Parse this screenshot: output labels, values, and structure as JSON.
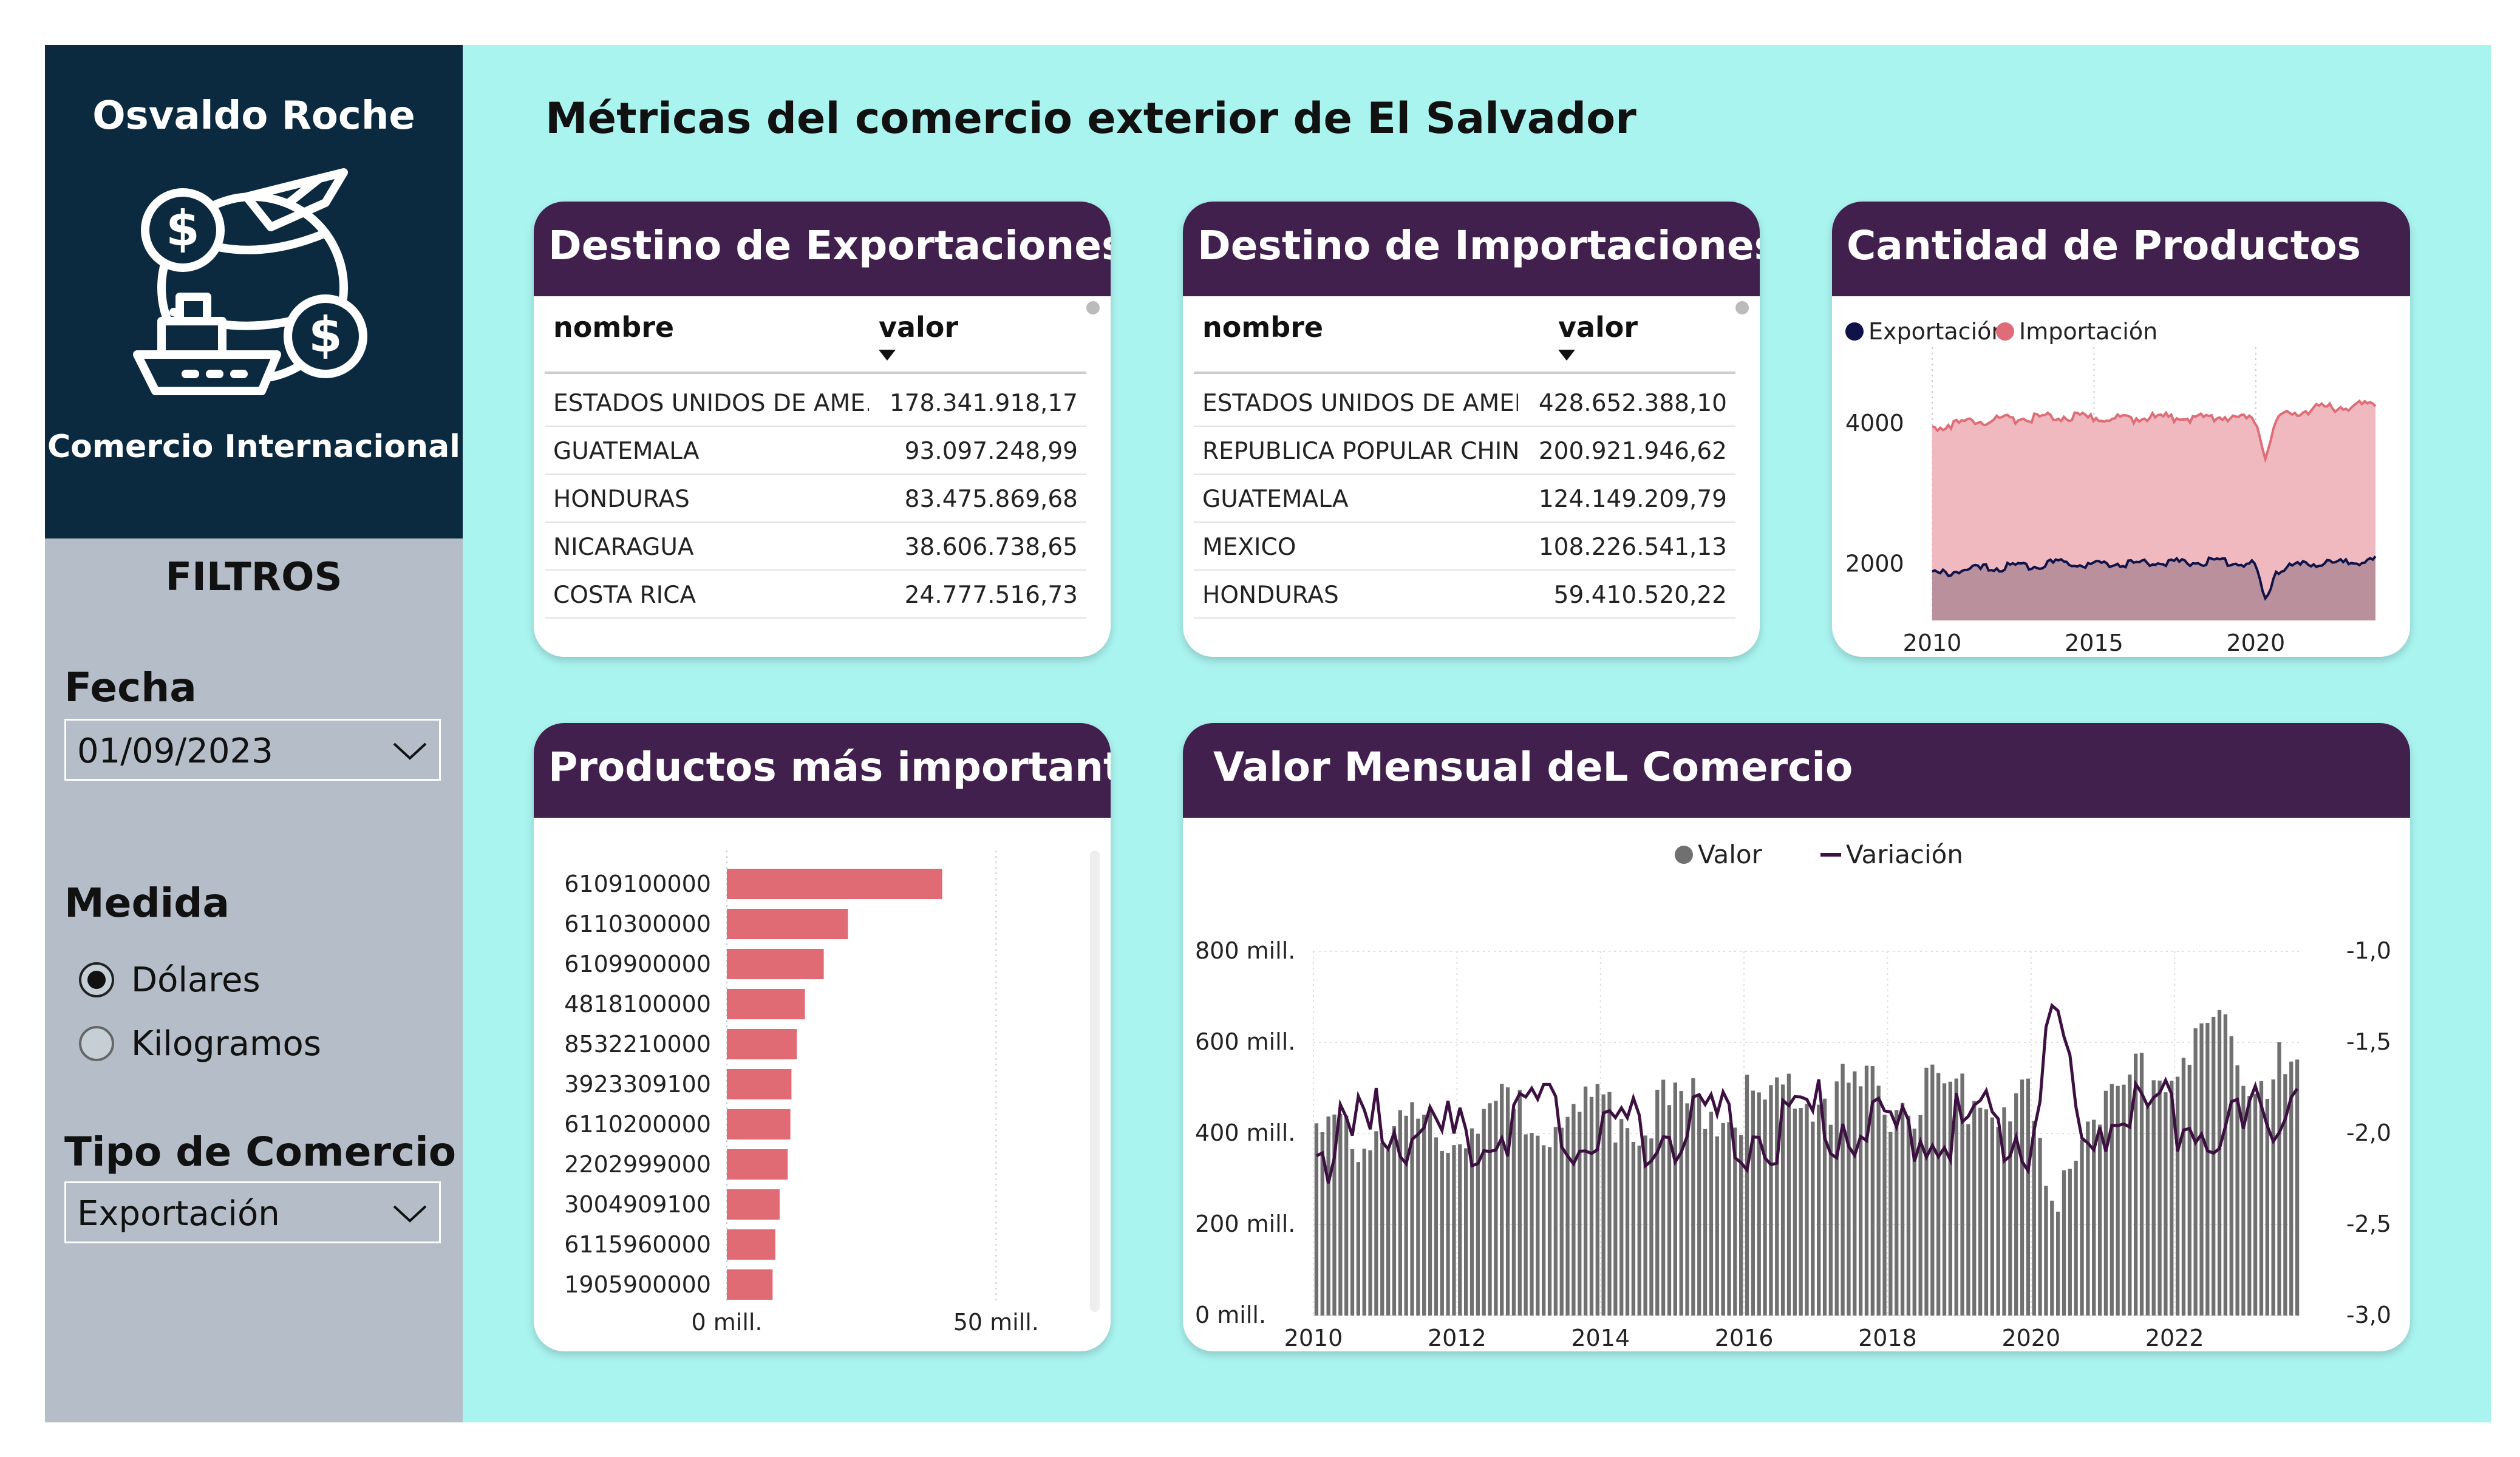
{
  "sidebar": {
    "author": "Osvaldo Roche",
    "subtitle": "Comercio Internacional",
    "logo_icon": "trade-globe-icon",
    "filters_title": "FILTROS",
    "fecha": {
      "label": "Fecha",
      "value": "01/09/2023"
    },
    "medida": {
      "label": "Medida",
      "options": [
        {
          "label": "Dólares",
          "selected": true
        },
        {
          "label": "Kilogramos",
          "selected": false
        }
      ]
    },
    "tipo": {
      "label": "Tipo de Comercio",
      "value": "Exportación"
    }
  },
  "main": {
    "title": "Métricas del comercio exterior de El Salvador"
  },
  "exportaciones": {
    "title": "Destino de Exportaciones",
    "columns": [
      "nombre",
      "valor"
    ],
    "rows": [
      {
        "nombre": "ESTADOS UNIDOS DE AME...",
        "valor": "178.341.918,17"
      },
      {
        "nombre": "GUATEMALA",
        "valor": "93.097.248,99"
      },
      {
        "nombre": "HONDURAS",
        "valor": "83.475.869,68"
      },
      {
        "nombre": "NICARAGUA",
        "valor": "38.606.738,65"
      },
      {
        "nombre": "COSTA RICA",
        "valor": "24.777.516,73"
      }
    ]
  },
  "importaciones": {
    "title": "Destino de Importaciones",
    "columns": [
      "nombre",
      "valor"
    ],
    "rows": [
      {
        "nombre": "ESTADOS UNIDOS DE AMERICA",
        "valor": "428.652.388,10"
      },
      {
        "nombre": "REPUBLICA POPULAR CHINA",
        "valor": "200.921.946,62"
      },
      {
        "nombre": "GUATEMALA",
        "valor": "124.149.209,79"
      },
      {
        "nombre": "MEXICO",
        "valor": "108.226.541,13"
      },
      {
        "nombre": "HONDURAS",
        "valor": "59.410.520,22"
      }
    ]
  },
  "cantidad": {
    "title": "Cantidad de Productos",
    "legend": [
      "Exportación",
      "Importación"
    ]
  },
  "productos": {
    "title": "Productos más importantes"
  },
  "valor_mensual": {
    "title": "Valor Mensual deL Comercio",
    "legend": [
      "Valor",
      "Variación"
    ]
  },
  "colors": {
    "sidebar_top": "#0b2a40",
    "sidebar": "#b5bec8",
    "background": "#aaf4f0",
    "card_header": "#42204d",
    "bar": "#e06b74",
    "export_line": "#10124a",
    "import_area": "#f0b9bf",
    "import_line": "#de6d77",
    "valor_bar": "#707070",
    "variacion_line": "#3c1040"
  },
  "chart_data": [
    {
      "type": "area",
      "title": "Cantidad de Productos",
      "x_ticks": [
        "2010",
        "2015",
        "2020"
      ],
      "y_ticks": [
        "2000",
        "4000"
      ],
      "xlim": [
        2010,
        2023.7
      ],
      "ylim": [
        1200,
        5000
      ],
      "series": [
        {
          "name": "Exportación",
          "x": [
            2010,
            2011,
            2012,
            2013,
            2014,
            2015,
            2016,
            2017,
            2018,
            2019,
            2020,
            2020.3,
            2020.6,
            2021,
            2022,
            2023,
            2023.7
          ],
          "values": [
            1850,
            1920,
            1950,
            1980,
            2020,
            2000,
            2010,
            2030,
            2030,
            2040,
            2000,
            1450,
            1900,
            1960,
            2010,
            2030,
            2060
          ]
        },
        {
          "name": "Importación",
          "x": [
            2010,
            2011,
            2012,
            2013,
            2014,
            2015,
            2016,
            2017,
            2018,
            2019,
            2020,
            2020.3,
            2020.6,
            2021,
            2022,
            2023,
            2023.7
          ],
          "values": [
            3950,
            4020,
            4050,
            4080,
            4100,
            4080,
            4070,
            4090,
            4080,
            4100,
            4050,
            3500,
            4000,
            4150,
            4220,
            4250,
            4300
          ]
        }
      ]
    },
    {
      "type": "bar",
      "title": "Productos más importantes",
      "categories": [
        "6109100000",
        "6110300000",
        "6109900000",
        "4818100000",
        "8532210000",
        "3923309100",
        "6110200000",
        "2202999000",
        "3004909100",
        "6115960000",
        "1905900000"
      ],
      "values": [
        40,
        22.5,
        18,
        14.5,
        13,
        12,
        11.8,
        11.3,
        9.8,
        9,
        8.5
      ],
      "unit": "mill.",
      "x_ticks": [
        "0 mill.",
        "50 mill."
      ],
      "xlim": [
        0,
        60
      ]
    },
    {
      "type": "bar",
      "title": "Valor Mensual deL Comercio",
      "x_ticks": [
        "2010",
        "2012",
        "2014",
        "2016",
        "2018",
        "2020",
        "2022"
      ],
      "y_ticks": [
        "0 mill.",
        "200 mill.",
        "400 mill.",
        "600 mill.",
        "800 mill."
      ],
      "y2_ticks": [
        "-3,0",
        "-2,5",
        "-2,0",
        "-1,5",
        "-1,0"
      ],
      "ylim": [
        0,
        800
      ],
      "y2lim": [
        -3.0,
        -1.0
      ],
      "xlim": [
        2010,
        2023.75
      ],
      "series": [
        {
          "name": "Valor",
          "x": [
            2010,
            2011,
            2012,
            2013,
            2014,
            2015,
            2016,
            2017,
            2018,
            2019,
            2020,
            2020.25,
            2020.5,
            2021,
            2022,
            2022.5,
            2023,
            2023.7
          ],
          "values": [
            380,
            410,
            430,
            440,
            445,
            450,
            470,
            480,
            475,
            480,
            460,
            200,
            380,
            470,
            560,
            620,
            550,
            520
          ]
        },
        {
          "name": "Variación",
          "x": [
            2010,
            2011,
            2012,
            2013,
            2014,
            2015,
            2016,
            2017,
            2018,
            2019,
            2020,
            2020.3,
            2020.8,
            2021,
            2022,
            2023,
            2023.7
          ],
          "values": [
            -2.1,
            -1.95,
            -2.05,
            -1.9,
            -2.0,
            -1.95,
            -2.0,
            -1.9,
            -2.0,
            -1.95,
            -2.0,
            -1.3,
            -2.2,
            -1.9,
            -1.9,
            -2.0,
            -1.75
          ]
        }
      ]
    }
  ]
}
